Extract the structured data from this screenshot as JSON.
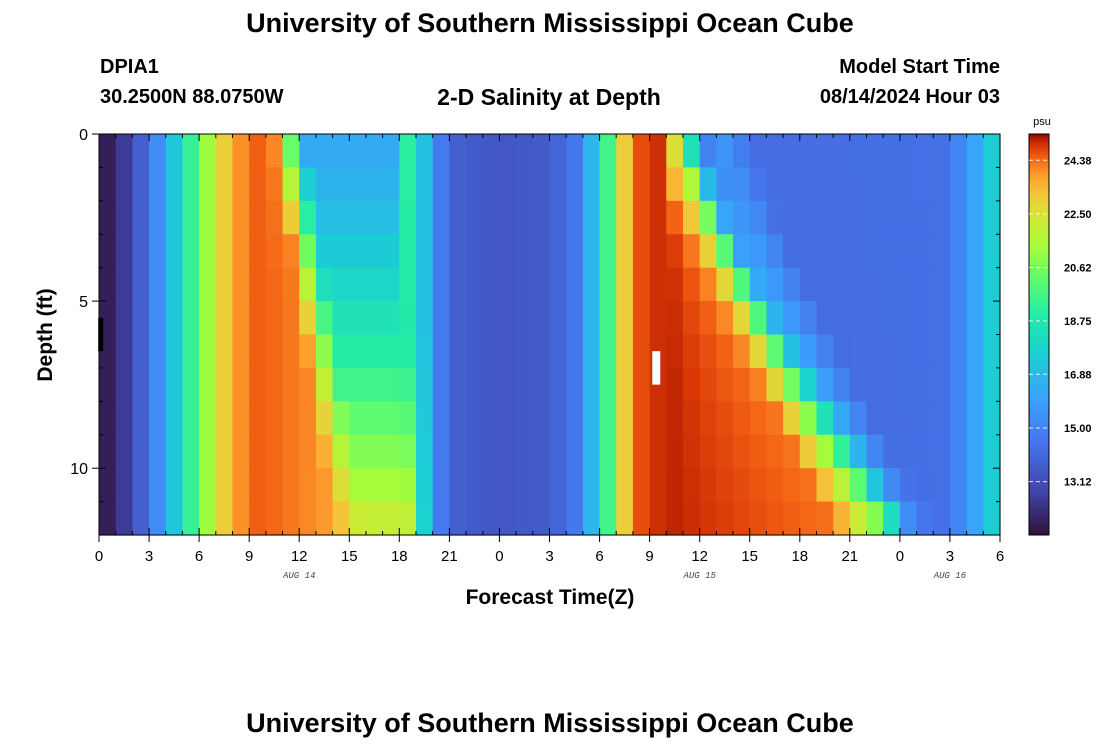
{
  "header": {
    "title": "University of Southern Mississippi Ocean Cube",
    "station": "DPIA1",
    "coordinates": "30.2500N  88.0750W",
    "subtitle": "2-D Salinity at Depth",
    "model_start_label": "Model Start Time",
    "model_start_value": "08/14/2024 Hour 03"
  },
  "footer": {
    "title": "University of Southern Mississippi Ocean Cube"
  },
  "chart_data": {
    "type": "heatmap",
    "title": "2-D Salinity at Depth",
    "xlabel": "Forecast Time(Z)",
    "ylabel": "Depth (ft)",
    "x_unit": "hours since 08/14/2024 00Z",
    "xlim": [
      0,
      54
    ],
    "ylim": [
      12,
      0
    ],
    "x_ticks": [
      0,
      3,
      6,
      9,
      12,
      15,
      18,
      21,
      24,
      27,
      30,
      33,
      36,
      39,
      42,
      45,
      48,
      51,
      54
    ],
    "x_tick_labels": [
      "0",
      "3",
      "6",
      "9",
      "12",
      "15",
      "18",
      "21",
      "0",
      "3",
      "6",
      "9",
      "12",
      "15",
      "18",
      "21",
      "0",
      "3",
      "6"
    ],
    "y_ticks": [
      0,
      5,
      10
    ],
    "y_tick_labels": [
      "0",
      "5",
      "10"
    ],
    "date_labels": [
      {
        "x": 12,
        "text": "AUG 14"
      },
      {
        "x": 36,
        "text": "AUG 15"
      },
      {
        "x": 51,
        "text": "AUG 16"
      }
    ],
    "colorbar": {
      "unit": "psu",
      "min": 11.25,
      "max": 25.3,
      "tick_labels": [
        "24.38",
        "22.50",
        "20.62",
        "18.75",
        "16.88",
        "15.00",
        "13.12"
      ],
      "tick_values": [
        24.38,
        22.5,
        20.62,
        18.75,
        16.88,
        15.0,
        13.12
      ]
    },
    "depth_levels_ft": [
      0.5,
      1.5,
      2.5,
      3.5,
      4.5,
      5.5,
      6.5,
      7.5,
      8.5,
      9.5,
      10.5,
      11.5
    ],
    "time_step_hours": 1,
    "marker_start": {
      "x": 0.1,
      "depth_ft": [
        5.5,
        6.5
      ],
      "color": "#000000"
    },
    "marker_now": {
      "x": 33.4,
      "depth_ft": [
        6.5,
        7.5
      ],
      "color": "#ffffff"
    }
  }
}
